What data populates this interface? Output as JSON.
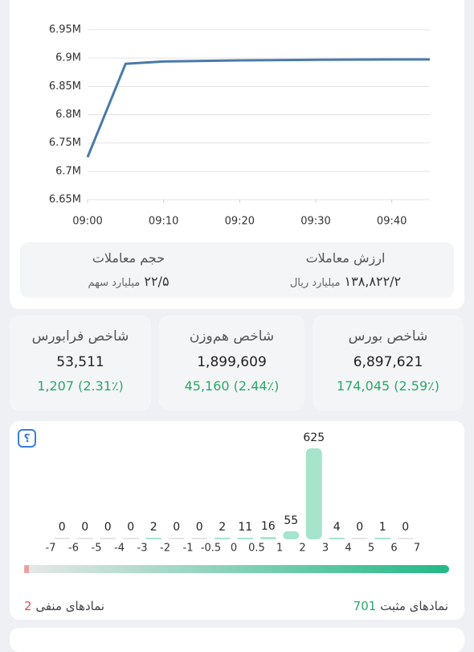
{
  "chart_data": [
    {
      "type": "line",
      "x": [
        "09:00",
        "09:05",
        "09:10",
        "09:20",
        "09:30",
        "09:40",
        "09:45"
      ],
      "values": [
        6725000,
        6890000,
        6894000,
        6896000,
        6897000,
        6897500,
        6897621
      ],
      "color": "#4a7aa8",
      "xlim": [
        "09:00",
        "09:45"
      ],
      "xticks": [
        "09:00",
        "09:10",
        "09:20",
        "09:30",
        "09:40"
      ],
      "ylim": [
        6650000,
        6950000
      ],
      "yticks": [
        {
          "value": 6650000,
          "label": "6.65M"
        },
        {
          "value": 6700000,
          "label": "6.7M"
        },
        {
          "value": 6750000,
          "label": "6.75M"
        },
        {
          "value": 6800000,
          "label": "6.8M"
        },
        {
          "value": 6850000,
          "label": "6.85M"
        },
        {
          "value": 6900000,
          "label": "6.9M"
        },
        {
          "value": 6950000,
          "label": "6.95M"
        }
      ],
      "grid": true
    },
    {
      "type": "histogram",
      "bins": [
        -7,
        -6,
        -5,
        -4,
        -3,
        -2,
        -1,
        -0.5,
        0,
        0.5,
        1,
        2,
        3,
        4,
        5,
        6,
        7
      ],
      "values": [
        0,
        0,
        0,
        0,
        2,
        0,
        0,
        2,
        11,
        16,
        55,
        625,
        4,
        0,
        1,
        0
      ],
      "color": "#a6e4cc"
    }
  ],
  "trade_stats": [
    {
      "title": "ارزش معاملات",
      "value": "۱۳۸,۸۲۲/۲",
      "unit": "میلیارد ریال"
    },
    {
      "title": "حجم معاملات",
      "value": "۲۲/۵",
      "unit": "میلیارد سهم"
    }
  ],
  "indices": [
    {
      "title": "شاخص بورس",
      "value": "6,897,621",
      "change": "174,045 (2.59٪)"
    },
    {
      "title": "شاخص هم‌وزن",
      "value": "1,899,609",
      "change": "45,160 (2.44٪)"
    },
    {
      "title": "شاخص فرابورس",
      "value": "53,511",
      "change": "1,207 (2.31٪)"
    }
  ],
  "market_breadth": {
    "help_icon": "؟",
    "positive_label": "نمادهای مثبت",
    "positive_count": "701",
    "negative_label": "نمادهای منفی",
    "negative_count": "2"
  }
}
